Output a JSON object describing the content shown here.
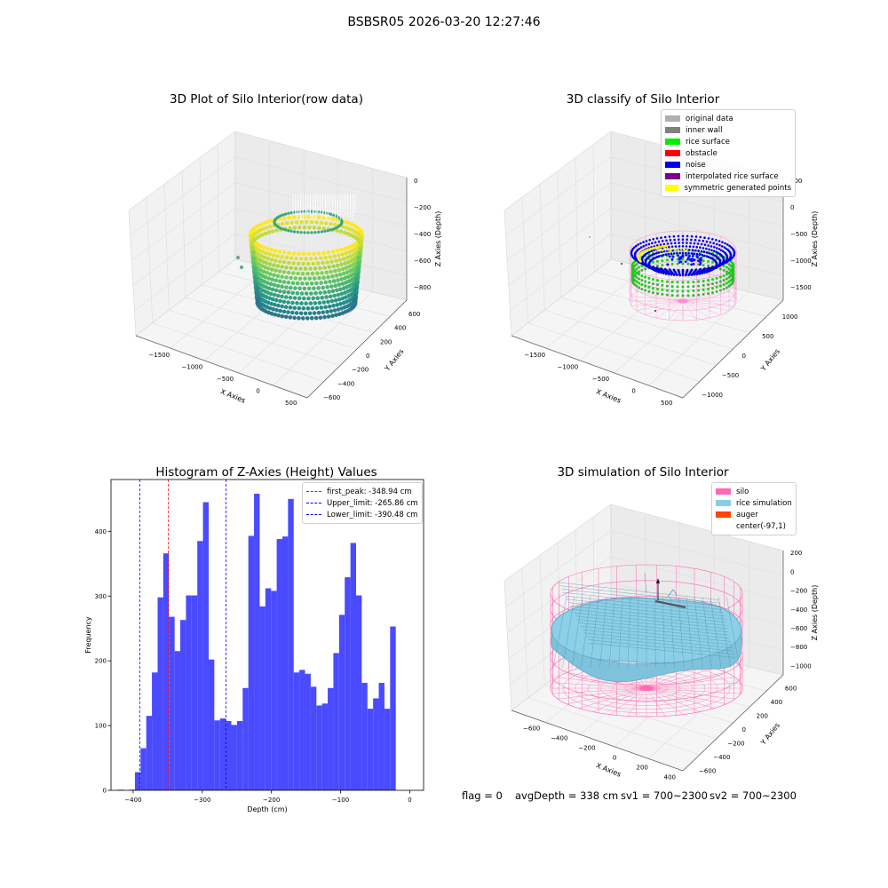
{
  "suptitle": "BSBSR05 2026-03-20 12:27:46",
  "panel1": {
    "title": "3D Plot of Silo Interior(row data)",
    "xlabel": "X Axies",
    "ylabel": "Y Axies",
    "zlabel": "Z Axies (Depth)",
    "xticks": [
      "−1500",
      "−1000",
      "−500",
      "0",
      "500"
    ],
    "yticks": [
      "−600",
      "−400",
      "−200",
      "0",
      "200",
      "400",
      "600"
    ],
    "zticks": [
      "0",
      "−200",
      "−400",
      "−600",
      "−800"
    ]
  },
  "panel2": {
    "title": "3D classify of Silo Interior",
    "xlabel": "X Axies",
    "ylabel": "Y Axies",
    "zlabel": "Z Axies (Depth)",
    "xticks": [
      "−1500",
      "−1000",
      "−500",
      "0",
      "500"
    ],
    "yticks": [
      "−1000",
      "−500",
      "0",
      "500",
      "1000"
    ],
    "zticks": [
      "500",
      "0",
      "−500",
      "−1000",
      "−1500"
    ],
    "legend": [
      {
        "label": "original data",
        "color": "#b0b0b0"
      },
      {
        "label": "inner wall",
        "color": "#808080"
      },
      {
        "label": "rice surface",
        "color": "#00ee00"
      },
      {
        "label": "obstacle",
        "color": "#ff0000"
      },
      {
        "label": "noise",
        "color": "#0000ee"
      },
      {
        "label": "interpolated rice surface",
        "color": "#800080"
      },
      {
        "label": "symmetric generated points",
        "color": "#ffff00"
      }
    ]
  },
  "panel3": {
    "title": "Histogram of Z-Axies (Height) Values",
    "xlabel": "Depth (cm)",
    "ylabel": "Frequency",
    "legend": [
      {
        "label": "first_peak: -348.94 cm",
        "color": "#ff0000"
      },
      {
        "label": "Upper_limit: -265.86 cm",
        "color": "#0000ff"
      },
      {
        "label": "Lower_limit: -390.48 cm",
        "color": "#0000ff"
      }
    ]
  },
  "panel4": {
    "title": "3D simulation of Silo Interior",
    "xlabel": "X Axies",
    "ylabel": "Y Axies",
    "zlabel": "Z Axies (Depth)",
    "xticks": [
      "−600",
      "−400",
      "−200",
      "0",
      "200",
      "400"
    ],
    "yticks": [
      "−600",
      "−400",
      "−200",
      "0",
      "200",
      "400",
      "600"
    ],
    "zticks": [
      "200",
      "0",
      "−200",
      "−400",
      "−600",
      "−800",
      "−1000"
    ],
    "legend": [
      {
        "label": "silo",
        "color": "#ff69b4"
      },
      {
        "label": "rice simulation",
        "color": "#87ceeb"
      },
      {
        "label": "auger",
        "color": "#ff4500"
      },
      {
        "label": "center(-97,1)",
        "color": ""
      }
    ]
  },
  "status": {
    "flag": "flag = 0",
    "avg_depth": "avgDepth = 338 cm",
    "sv1": "sv1 = 700~2300",
    "sv2": "sv2 = 700~2300"
  },
  "chart_data": [
    {
      "type": "scatter",
      "title": "3D Plot of Silo Interior(row data)",
      "xlabel": "X Axies",
      "ylabel": "Y Axies",
      "zlabel": "Z Axies (Depth)",
      "xlim": [
        -1800,
        600
      ],
      "ylim": [
        -650,
        650
      ],
      "zlim": [
        -850,
        50
      ],
      "colormap": "viridis"
    },
    {
      "type": "scatter",
      "title": "3D classify of Silo Interior",
      "xlabel": "X Axies",
      "ylabel": "Y Axies",
      "zlabel": "Z Axies (Depth)",
      "xlim": [
        -1800,
        600
      ],
      "ylim": [
        -1100,
        1100
      ],
      "zlim": [
        -1600,
        600
      ],
      "series": [
        {
          "name": "original data"
        },
        {
          "name": "inner wall"
        },
        {
          "name": "rice surface"
        },
        {
          "name": "obstacle"
        },
        {
          "name": "noise"
        },
        {
          "name": "interpolated rice surface"
        },
        {
          "name": "symmetric generated points"
        }
      ],
      "legend": "top-right"
    },
    {
      "type": "bar",
      "title": "Histogram of Z-Axies (Height) Values",
      "xlabel": "Depth (cm)",
      "ylabel": "Frequency",
      "xlim": [
        -432,
        20
      ],
      "ylim": [
        0,
        480
      ],
      "xticks": [
        -400,
        -300,
        -200,
        -100,
        0
      ],
      "yticks": [
        0,
        100,
        200,
        300,
        400
      ],
      "bin_width": 8.2,
      "bin_start": -422,
      "values": [
        1,
        0,
        1,
        28,
        65,
        115,
        182,
        298,
        366,
        268,
        215,
        263,
        301,
        301,
        385,
        445,
        202,
        108,
        111,
        107,
        101,
        107,
        158,
        393,
        458,
        284,
        312,
        308,
        388,
        392,
        450,
        182,
        186,
        180,
        160,
        131,
        134,
        158,
        212,
        271,
        329,
        382,
        301,
        166,
        126,
        142,
        166,
        126,
        253
      ],
      "lines": [
        {
          "name": "first_peak: -348.94 cm",
          "x": -348.94,
          "color": "red",
          "style": "dashed"
        },
        {
          "name": "Upper_limit: -265.86 cm",
          "x": -265.86,
          "color": "blue",
          "style": "dashed"
        },
        {
          "name": "Lower_limit: -390.48 cm",
          "x": -390.48,
          "color": "blue",
          "style": "dashed"
        }
      ],
      "legend": "top-right"
    },
    {
      "type": "surface",
      "title": "3D simulation of Silo Interior",
      "xlabel": "X Axies",
      "ylabel": "Y Axies",
      "zlabel": "Z Axies (Depth)",
      "xlim": [
        -700,
        500
      ],
      "ylim": [
        -700,
        700
      ],
      "zlim": [
        -1100,
        300
      ],
      "series": [
        {
          "name": "silo"
        },
        {
          "name": "rice simulation"
        },
        {
          "name": "auger"
        },
        {
          "name": "center(-97,1)"
        }
      ],
      "legend": "top-right"
    }
  ]
}
